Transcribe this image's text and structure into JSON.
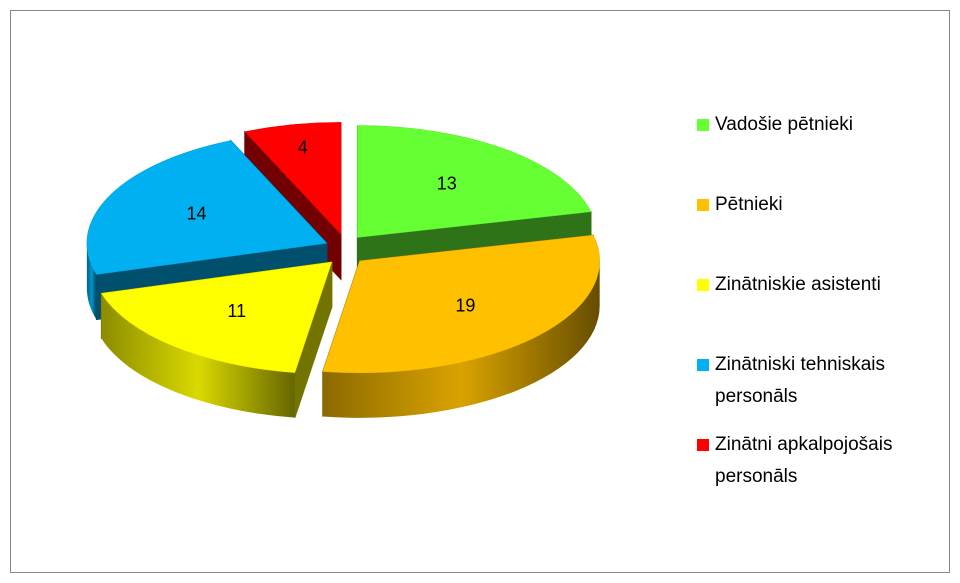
{
  "chart_data": {
    "type": "pie3d",
    "categories": [
      "Vadošie pētnieki",
      "Pētnieki",
      "Zinātniskie asistenti",
      "Zinātniski tehniskais personāls",
      "Zinātni apkalpojošais personāls"
    ],
    "values": [
      13,
      19,
      11,
      14,
      4
    ],
    "colors": [
      "#66ff33",
      "#ffc000",
      "#ffff00",
      "#00b0f0",
      "#ff0000"
    ],
    "legend": "right"
  }
}
